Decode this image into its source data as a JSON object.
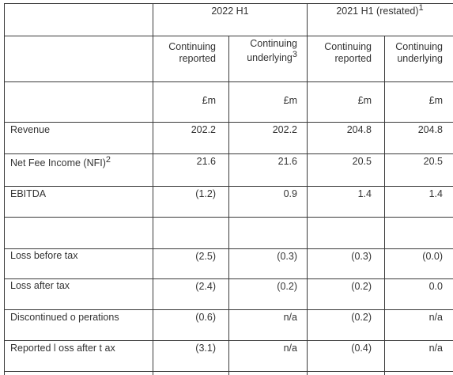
{
  "header": {
    "period_2022": "2022 H1",
    "period_2021": "2021 H1 (restated)",
    "period_2021_note": "1",
    "col1_line1": "Continuing",
    "col1_line2": "reported",
    "col2_line1": "Continuing",
    "col2_line2": "underlying",
    "col2_note": "3",
    "col3_line1": "Continuing",
    "col3_line2": "reported",
    "col4_line1": "Continuing",
    "col4_line2": "underlying",
    "unit": "£m"
  },
  "rows": [
    {
      "label": "Revenue",
      "note": "",
      "values": [
        "202.2",
        "202.2",
        "204.8",
        "204.8"
      ]
    },
    {
      "label": "Net Fee Income (NFI)",
      "note": "2",
      "values": [
        "21.6",
        "21.6",
        "20.5",
        "20.5"
      ]
    },
    {
      "label": "EBITDA",
      "note": "",
      "values": [
        "(1.2)",
        "0.9",
        "1.4",
        "1.4"
      ]
    },
    {
      "label": "Loss before tax",
      "note": "",
      "values": [
        "(2.5)",
        "(0.3)",
        "(0.3)",
        "(0.0)"
      ]
    },
    {
      "label": "Loss after tax",
      "note": "",
      "values": [
        "(2.4)",
        "(0.2)",
        "(0.2)",
        "0.0"
      ]
    },
    {
      "label": "Discontinued o perations",
      "note": "",
      "values": [
        "(0.6)",
        "n/a",
        "(0.2)",
        "n/a"
      ]
    },
    {
      "label": "Reported l oss after t ax",
      "note": "",
      "values": [
        "(3.1)",
        "n/a",
        "(0.4)",
        "n/a"
      ]
    }
  ]
}
